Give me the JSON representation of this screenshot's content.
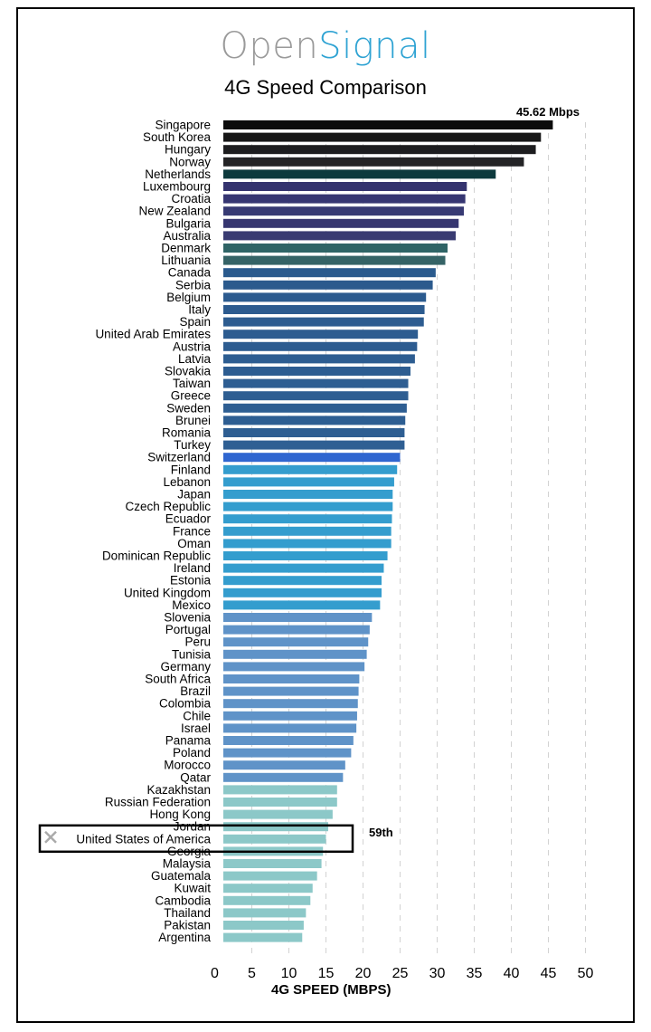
{
  "brand": {
    "part1": "Open",
    "part2": "Signal"
  },
  "chart_data": {
    "type": "bar",
    "orientation": "horizontal",
    "title": "4G Speed Comparison",
    "xlabel": "4G SPEED (MBPS)",
    "xlim": [
      0,
      50
    ],
    "xticks": [
      0,
      5,
      10,
      15,
      20,
      25,
      30,
      35,
      40,
      45,
      50
    ],
    "grid": "vertical dashed",
    "top_annotation": "45.62 Mbps",
    "highlight": {
      "category": "United States of America",
      "rank_label": "59th"
    },
    "categories": [
      "Singapore",
      "South Korea",
      "Hungary",
      "Norway",
      "Netherlands",
      "Luxembourg",
      "Croatia",
      "New Zealand",
      "Bulgaria",
      "Australia",
      "Denmark",
      "Lithuania",
      "Canada",
      "Serbia",
      "Belgium",
      "Italy",
      "Spain",
      "United Arab Emirates",
      "Austria",
      "Latvia",
      "Slovakia",
      "Taiwan",
      "Greece",
      "Sweden",
      "Brunei",
      "Romania",
      "Turkey",
      "Switzerland",
      "Finland",
      "Lebanon",
      "Japan",
      "Czech Republic",
      "Ecuador",
      "France",
      "Oman",
      "Dominican Republic",
      "Ireland",
      "Estonia",
      "United Kingdom",
      "Mexico",
      "Slovenia",
      "Portugal",
      "Peru",
      "Tunisia",
      "Germany",
      "South Africa",
      "Brazil",
      "Colombia",
      "Chile",
      "Israel",
      "Panama",
      "Poland",
      "Morocco",
      "Qatar",
      "Kazakhstan",
      "Russian Federation",
      "Hong Kong",
      "Jordan",
      "United States of America",
      "Georgia",
      "Malaysia",
      "Guatemala",
      "Kuwait",
      "Cambodia",
      "Thailand",
      "Pakistan",
      "Argentina"
    ],
    "values": [
      45.6,
      44.0,
      43.3,
      41.7,
      37.9,
      34.0,
      33.8,
      33.6,
      32.9,
      32.5,
      31.4,
      31.1,
      29.8,
      29.4,
      28.5,
      28.3,
      28.2,
      27.4,
      27.3,
      27.0,
      26.4,
      26.1,
      26.1,
      25.9,
      25.7,
      25.6,
      25.6,
      25.0,
      24.6,
      24.2,
      24.0,
      24.0,
      23.9,
      23.8,
      23.8,
      23.3,
      22.8,
      22.5,
      22.5,
      22.3,
      21.2,
      20.9,
      20.7,
      20.5,
      20.2,
      19.5,
      19.4,
      19.3,
      19.2,
      19.1,
      18.7,
      18.4,
      17.6,
      17.3,
      16.5,
      16.5,
      15.9,
      15.3,
      15.0,
      14.6,
      14.4,
      13.8,
      13.2,
      12.9,
      12.3,
      12.0,
      11.8
    ],
    "bar_colors": [
      "#0c0c0c",
      "#171717",
      "#1d1d1f",
      "#242426",
      "#0d3a3d",
      "#34336e",
      "#363672",
      "#373a73",
      "#363670",
      "#393b72",
      "#2f6466",
      "#356366",
      "#2a5a8d",
      "#2b5a8d",
      "#2c5b8f",
      "#2c5b8f",
      "#2d5c90",
      "#2d5c90",
      "#2d5c90",
      "#2d5d91",
      "#2d5d91",
      "#2e5e92",
      "#2e5e92",
      "#2e5e92",
      "#2e5e92",
      "#2e5e92",
      "#2f5f93",
      "#2f66d0",
      "#349dce",
      "#349dce",
      "#349dce",
      "#349dce",
      "#349dce",
      "#349dce",
      "#349dce",
      "#349dce",
      "#349dce",
      "#349dce",
      "#349dce",
      "#349dce",
      "#5f93c8",
      "#5f93c8",
      "#5f93c8",
      "#5f93c8",
      "#5f93c8",
      "#5f93c8",
      "#5f93c8",
      "#5f93c8",
      "#5f93c8",
      "#5f93c8",
      "#5f93c8",
      "#5f93c8",
      "#5f93c8",
      "#5f93c8",
      "#8cc8c8",
      "#8cc8c8",
      "#8cc8c8",
      "#8cc8c8",
      "#8cc8c8",
      "#8cc8c8",
      "#8cc8c8",
      "#8cc8c8",
      "#8cc8c8",
      "#8cc8c8",
      "#8cc8c8",
      "#8cc8c8",
      "#8cc8c8"
    ]
  }
}
